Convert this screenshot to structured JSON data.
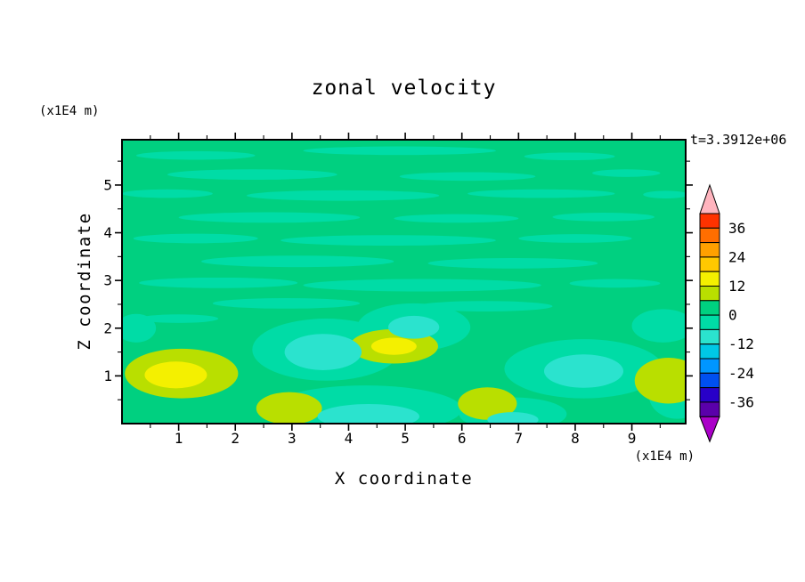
{
  "title": "zonal velocity",
  "timestamp": "t=3.3912e+06",
  "x_axis": {
    "label": "X coordinate",
    "units": "(x1E4 m)",
    "major_ticks": [
      1,
      2,
      3,
      4,
      5,
      6,
      7,
      8,
      9
    ],
    "minor_step": 0.5,
    "range": [
      0,
      9.95
    ]
  },
  "y_axis": {
    "label": "Z coordinate",
    "units": "(x1E4 m)",
    "major_ticks": [
      1,
      2,
      3,
      4,
      5
    ],
    "minor_step": 0.5,
    "range": [
      0,
      5.95
    ]
  },
  "colorbar": {
    "labels": [
      36,
      24,
      12,
      0,
      -12,
      -24,
      -36
    ],
    "segment_colors_top_to_bottom": [
      "#FF3200",
      "#FF6E00",
      "#FFA000",
      "#FFC800",
      "#F4F000",
      "#B9DF00",
      "#00D080",
      "#00DCA6",
      "#2BE3CE",
      "#00C8E6",
      "#0096FF",
      "#0050F0",
      "#2800C8",
      "#5A00AA"
    ],
    "over_color": "#FFB4BE",
    "under_color": "#AA00C8"
  },
  "chart_data": {
    "type": "filled_contour",
    "title": "zonal velocity",
    "xlabel": "X coordinate (x1E4 m)",
    "ylabel": "Z coordinate (x1E4 m)",
    "annotation": "t=3.3912e+06",
    "x_range": [
      0,
      9.95
    ],
    "z_range": [
      0,
      5.95
    ],
    "contour_interval": 6,
    "colorbar_value_range": [
      -42,
      42
    ],
    "field_summary": "mostly near 0 (green), weak negative streaks, cyan minima near -8 in lower half, yellow maxima near +14 in lower-left",
    "palette": {
      "green": "#00D080",
      "teal": "#00DCA6",
      "cyan": "#2BE3CE",
      "ygreen": "#B9DF00",
      "yellow": "#F4F000"
    },
    "base_level": "green",
    "blobs": [
      {
        "x": 1.3,
        "z": 5.62,
        "rx": 1.05,
        "ry": 0.09,
        "level": "teal"
      },
      {
        "x": 4.9,
        "z": 5.72,
        "rx": 1.7,
        "ry": 0.09,
        "level": "teal"
      },
      {
        "x": 7.9,
        "z": 5.6,
        "rx": 0.8,
        "ry": 0.08,
        "level": "teal"
      },
      {
        "x": 2.3,
        "z": 5.22,
        "rx": 1.5,
        "ry": 0.11,
        "level": "teal"
      },
      {
        "x": 6.1,
        "z": 5.18,
        "rx": 1.2,
        "ry": 0.09,
        "level": "teal"
      },
      {
        "x": 8.9,
        "z": 5.25,
        "rx": 0.6,
        "ry": 0.08,
        "level": "teal"
      },
      {
        "x": 0.8,
        "z": 4.82,
        "rx": 0.8,
        "ry": 0.09,
        "level": "teal"
      },
      {
        "x": 3.9,
        "z": 4.78,
        "rx": 1.7,
        "ry": 0.11,
        "level": "teal"
      },
      {
        "x": 7.4,
        "z": 4.82,
        "rx": 1.3,
        "ry": 0.09,
        "level": "teal"
      },
      {
        "x": 9.6,
        "z": 4.8,
        "rx": 0.4,
        "ry": 0.08,
        "level": "teal"
      },
      {
        "x": 2.6,
        "z": 4.32,
        "rx": 1.6,
        "ry": 0.11,
        "level": "teal"
      },
      {
        "x": 5.9,
        "z": 4.3,
        "rx": 1.1,
        "ry": 0.09,
        "level": "teal"
      },
      {
        "x": 8.5,
        "z": 4.33,
        "rx": 0.9,
        "ry": 0.09,
        "level": "teal"
      },
      {
        "x": 1.3,
        "z": 3.88,
        "rx": 1.1,
        "ry": 0.1,
        "level": "teal"
      },
      {
        "x": 4.7,
        "z": 3.84,
        "rx": 1.9,
        "ry": 0.11,
        "level": "teal"
      },
      {
        "x": 8.0,
        "z": 3.88,
        "rx": 1.0,
        "ry": 0.09,
        "level": "teal"
      },
      {
        "x": 3.1,
        "z": 3.4,
        "rx": 1.7,
        "ry": 0.12,
        "level": "teal"
      },
      {
        "x": 6.9,
        "z": 3.36,
        "rx": 1.5,
        "ry": 0.11,
        "level": "teal"
      },
      {
        "x": 1.7,
        "z": 2.95,
        "rx": 1.4,
        "ry": 0.11,
        "level": "teal"
      },
      {
        "x": 5.3,
        "z": 2.9,
        "rx": 2.1,
        "ry": 0.13,
        "level": "teal"
      },
      {
        "x": 8.7,
        "z": 2.94,
        "rx": 0.8,
        "ry": 0.09,
        "level": "teal"
      },
      {
        "x": 2.9,
        "z": 2.52,
        "rx": 1.3,
        "ry": 0.11,
        "level": "teal"
      },
      {
        "x": 6.4,
        "z": 2.46,
        "rx": 1.2,
        "ry": 0.11,
        "level": "teal"
      },
      {
        "x": 1.0,
        "z": 2.2,
        "rx": 0.7,
        "ry": 0.09,
        "level": "teal"
      },
      {
        "x": 3.6,
        "z": 1.55,
        "rx": 1.3,
        "ry": 0.65,
        "level": "teal"
      },
      {
        "x": 5.15,
        "z": 2.02,
        "rx": 1.0,
        "ry": 0.5,
        "level": "teal"
      },
      {
        "x": 8.15,
        "z": 1.15,
        "rx": 1.4,
        "ry": 0.62,
        "level": "teal"
      },
      {
        "x": 4.3,
        "z": 0.3,
        "rx": 1.7,
        "ry": 0.5,
        "level": "teal"
      },
      {
        "x": 6.9,
        "z": 0.2,
        "rx": 0.95,
        "ry": 0.35,
        "level": "teal"
      },
      {
        "x": 9.55,
        "z": 2.05,
        "rx": 0.55,
        "ry": 0.35,
        "level": "teal"
      },
      {
        "x": 0.25,
        "z": 2.0,
        "rx": 0.35,
        "ry": 0.3,
        "level": "teal"
      },
      {
        "x": 9.8,
        "z": 0.6,
        "rx": 0.5,
        "ry": 0.5,
        "level": "teal"
      },
      {
        "x": 1.05,
        "z": 1.05,
        "rx": 1.0,
        "ry": 0.52,
        "level": "ygreen"
      },
      {
        "x": 4.8,
        "z": 1.62,
        "rx": 0.78,
        "ry": 0.36,
        "level": "ygreen"
      },
      {
        "x": 2.95,
        "z": 0.32,
        "rx": 0.58,
        "ry": 0.34,
        "level": "ygreen"
      },
      {
        "x": 6.45,
        "z": 0.42,
        "rx": 0.52,
        "ry": 0.34,
        "level": "ygreen"
      },
      {
        "x": 9.65,
        "z": 0.9,
        "rx": 0.6,
        "ry": 0.48,
        "level": "ygreen"
      },
      {
        "x": 3.55,
        "z": 1.5,
        "rx": 0.68,
        "ry": 0.38,
        "level": "cyan"
      },
      {
        "x": 5.15,
        "z": 2.02,
        "rx": 0.45,
        "ry": 0.24,
        "level": "cyan"
      },
      {
        "x": 8.15,
        "z": 1.1,
        "rx": 0.7,
        "ry": 0.35,
        "level": "cyan"
      },
      {
        "x": 4.35,
        "z": 0.15,
        "rx": 0.9,
        "ry": 0.26,
        "level": "cyan"
      },
      {
        "x": 6.9,
        "z": 0.08,
        "rx": 0.45,
        "ry": 0.16,
        "level": "cyan"
      },
      {
        "x": 0.95,
        "z": 1.02,
        "rx": 0.55,
        "ry": 0.28,
        "level": "yellow"
      },
      {
        "x": 4.8,
        "z": 1.62,
        "rx": 0.4,
        "ry": 0.18,
        "level": "yellow"
      }
    ]
  }
}
